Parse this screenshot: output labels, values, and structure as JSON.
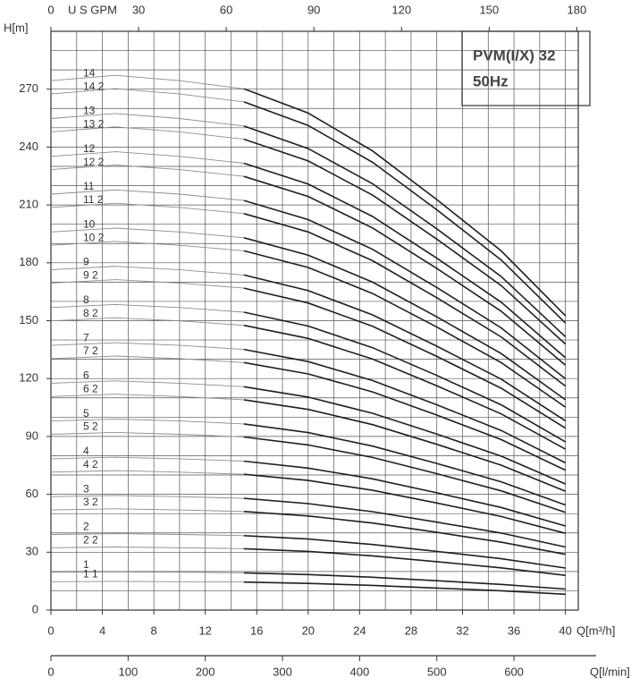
{
  "chart_data": {
    "type": "line",
    "title": "PVM(I/X) 32",
    "subtitle": "50Hz",
    "ylabel": "H[m]",
    "xlabel": "Q[m³/h]",
    "xlim": [
      0,
      41
    ],
    "xticks": [
      0,
      4,
      8,
      12,
      16,
      20,
      24,
      28,
      32,
      36,
      40
    ],
    "xminor": [
      2,
      6,
      10,
      14,
      18,
      22,
      26,
      30,
      34,
      38
    ],
    "ylim": [
      0,
      300
    ],
    "yticks": [
      0,
      30,
      60,
      90,
      120,
      150,
      180,
      210,
      240,
      270
    ],
    "yminor": [
      10,
      20,
      40,
      50,
      70,
      80,
      100,
      110,
      130,
      140,
      160,
      170,
      190,
      200,
      220,
      230,
      250,
      260,
      280,
      290
    ],
    "grid": true,
    "top_axis": {
      "label": "U S GPM",
      "lim": [
        0,
        180.5
      ],
      "ticks": [
        0,
        30,
        60,
        90,
        120,
        150,
        180
      ]
    },
    "bottom_axis": {
      "label": "Q[l/min]",
      "lim": [
        0,
        683.3
      ],
      "ticks": [
        0,
        100,
        200,
        300,
        400,
        500,
        600
      ]
    },
    "line_color": "#1f1f1f",
    "low_flow_color": "#8c8c8c",
    "x": [
      0,
      5,
      10,
      15,
      20,
      25,
      30,
      35,
      40
    ],
    "series": [
      {
        "name": "14",
        "values": [
          274.4,
          277.2,
          274.4,
          270.2,
          257.6,
          238.0,
          212.8,
          186.2,
          152.6
        ]
      },
      {
        "name": "14 2",
        "values": [
          267.5,
          270.3,
          267.5,
          263.4,
          251.2,
          232.1,
          207.5,
          181.5,
          148.8
        ]
      },
      {
        "name": "13",
        "values": [
          254.8,
          257.4,
          254.8,
          250.9,
          239.2,
          221.0,
          197.6,
          172.9,
          141.7
        ]
      },
      {
        "name": "13 2",
        "values": [
          247.9,
          250.5,
          247.9,
          244.1,
          232.8,
          215.1,
          192.3,
          168.2,
          137.9
        ]
      },
      {
        "name": "12",
        "values": [
          235.2,
          237.6,
          235.2,
          231.6,
          220.8,
          204.0,
          182.4,
          159.6,
          130.8
        ]
      },
      {
        "name": "12 2",
        "values": [
          228.3,
          230.7,
          228.3,
          224.8,
          214.4,
          198.1,
          177.1,
          154.9,
          127.0
        ]
      },
      {
        "name": "11",
        "values": [
          215.6,
          217.8,
          215.6,
          212.3,
          202.4,
          187.0,
          167.2,
          146.3,
          119.9
        ]
      },
      {
        "name": "11 2",
        "values": [
          208.7,
          210.9,
          208.7,
          205.5,
          196.0,
          181.1,
          161.9,
          141.6,
          116.1
        ]
      },
      {
        "name": "10",
        "values": [
          196,
          198,
          196,
          193,
          184,
          170,
          152,
          133,
          109
        ]
      },
      {
        "name": "10 2",
        "values": [
          189.1,
          191.1,
          189.1,
          186.2,
          177.6,
          164.1,
          146.7,
          128.3,
          105.2
        ]
      },
      {
        "name": "9",
        "values": [
          176.4,
          178.2,
          176.4,
          173.7,
          165.6,
          153,
          136.8,
          119.7,
          98.1
        ]
      },
      {
        "name": "9 2",
        "values": [
          169.5,
          171.3,
          169.5,
          166.9,
          159.2,
          147.1,
          131.5,
          115.0,
          94.3
        ]
      },
      {
        "name": "8",
        "values": [
          156.8,
          158.4,
          156.8,
          154.4,
          147.2,
          136,
          121.6,
          106.4,
          87.2
        ]
      },
      {
        "name": "8 2",
        "values": [
          149.9,
          151.5,
          149.9,
          147.6,
          140.8,
          130.1,
          116.3,
          101.7,
          83.4
        ]
      },
      {
        "name": "7",
        "values": [
          137.2,
          138.6,
          137.2,
          135.1,
          128.8,
          119,
          106.4,
          93.1,
          76.3
        ]
      },
      {
        "name": "7 2",
        "values": [
          130.3,
          131.7,
          130.3,
          128.3,
          122.4,
          113.1,
          101.1,
          88.4,
          72.5
        ]
      },
      {
        "name": "6",
        "values": [
          117.6,
          118.8,
          117.6,
          115.8,
          110.4,
          102,
          91.2,
          79.8,
          65.4
        ]
      },
      {
        "name": "6 2",
        "values": [
          110.7,
          111.9,
          110.7,
          109.0,
          104.0,
          96.1,
          85.9,
          75.1,
          61.6
        ]
      },
      {
        "name": "5",
        "values": [
          98,
          99,
          98,
          96.5,
          92,
          85,
          76,
          66.5,
          54.5
        ]
      },
      {
        "name": "5 2",
        "values": [
          91.1,
          92.1,
          91.1,
          89.7,
          85.6,
          79.1,
          70.7,
          61.8,
          50.7
        ]
      },
      {
        "name": "4",
        "values": [
          78.4,
          79.2,
          78.4,
          77.2,
          73.6,
          68,
          60.8,
          53.2,
          43.6
        ]
      },
      {
        "name": "4 2",
        "values": [
          71.5,
          72.3,
          71.5,
          70.4,
          67.2,
          62.1,
          55.5,
          48.5,
          39.8
        ]
      },
      {
        "name": "3",
        "values": [
          58.8,
          59.4,
          58.8,
          57.9,
          55.2,
          51,
          45.6,
          39.9,
          32.7
        ]
      },
      {
        "name": "3 2",
        "values": [
          51.9,
          52.5,
          51.9,
          51.1,
          48.8,
          45.1,
          40.3,
          35.2,
          28.9
        ]
      },
      {
        "name": "2",
        "values": [
          39.2,
          39.6,
          39.2,
          38.6,
          36.8,
          34,
          30.4,
          26.6,
          21.8
        ]
      },
      {
        "name": "2 2",
        "values": [
          32.3,
          32.7,
          32.3,
          31.8,
          30.4,
          28.1,
          25.1,
          21.9,
          18.0
        ]
      },
      {
        "name": "1",
        "values": [
          19.6,
          19.8,
          19.6,
          19.3,
          18.4,
          17,
          15.2,
          13.3,
          10.9
        ]
      },
      {
        "name": "1 1",
        "values": [
          14.7,
          14.9,
          14.7,
          14.5,
          13.8,
          12.8,
          11.4,
          10.0,
          8.2
        ]
      }
    ]
  }
}
